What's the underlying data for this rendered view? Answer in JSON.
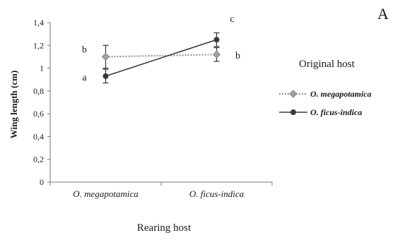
{
  "chart_data": {
    "type": "line",
    "panel_label": "A",
    "xlabel": "Rearing host",
    "ylabel": "Wing length (cm)",
    "categories": [
      "O. megapotamica",
      "O. ficus-indica"
    ],
    "ylim": [
      0,
      1.4
    ],
    "yticks": [
      "0",
      "0,2",
      "0,4",
      "0,6",
      "0,8",
      "1",
      "1,2",
      "1,4"
    ],
    "legend": {
      "title": "Original host",
      "placement": "right"
    },
    "series": [
      {
        "name": "O. megapotamica",
        "values": [
          1.1,
          1.12
        ],
        "errors": [
          0.1,
          0.06
        ],
        "letters": [
          "b",
          "b"
        ],
        "color": "#8c8c8c",
        "line_style": "dotted",
        "marker": "diamond"
      },
      {
        "name": "O. ficus-indica",
        "values": [
          0.93,
          1.25
        ],
        "errors": [
          0.06,
          0.06
        ],
        "letters": [
          "a",
          "c"
        ],
        "color": "#3a3a3a",
        "line_style": "solid",
        "marker": "circle"
      }
    ]
  }
}
